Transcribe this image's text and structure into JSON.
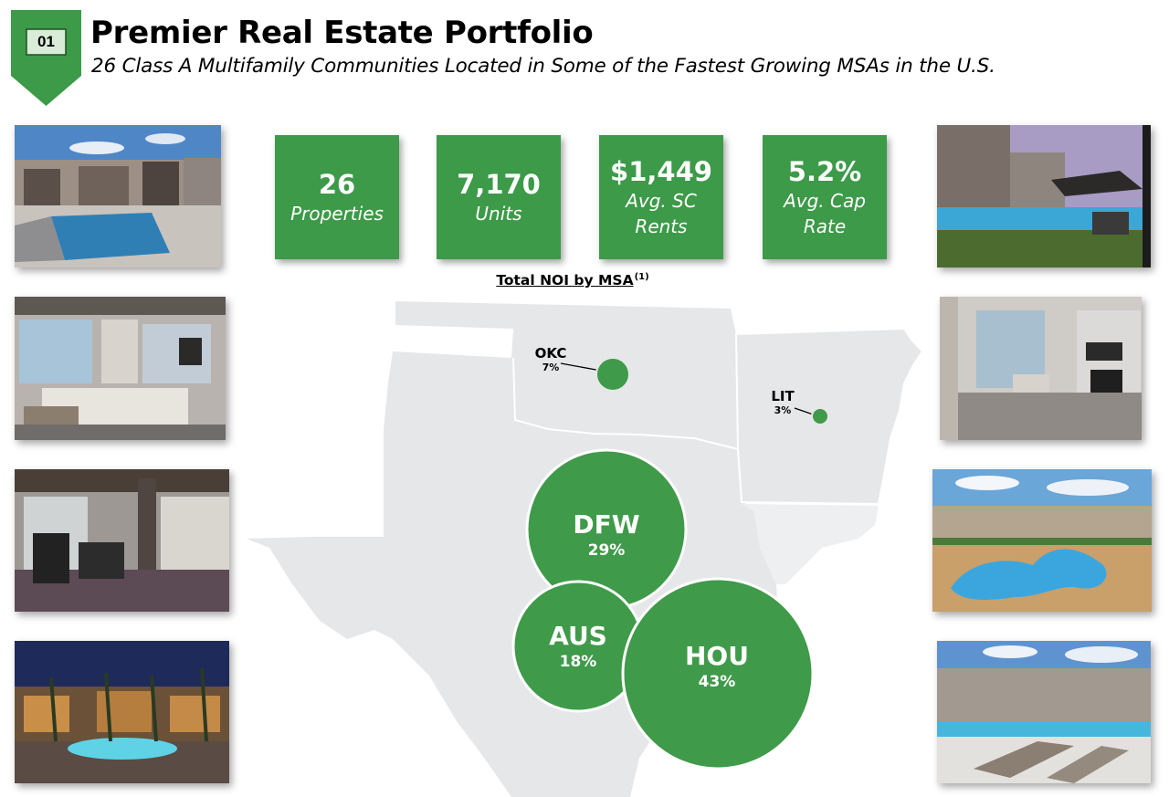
{
  "header": {
    "section_number": "01",
    "title": "Premier Real Estate Portfolio",
    "subtitle": "26 Class A Multifamily Communities Located in Some of the Fastest Growing MSAs in the U.S."
  },
  "colors": {
    "brand_green": "#3c9a48",
    "bubble_green": "#3f9a49",
    "map_gray": "#e6e7e9"
  },
  "stats": [
    {
      "value": "26",
      "label_lines": [
        "Properties"
      ]
    },
    {
      "value": "7,170",
      "label_lines": [
        "Units"
      ]
    },
    {
      "value": "$1,449",
      "label_lines": [
        "Avg. SC",
        "Rents"
      ]
    },
    {
      "value": "5.2%",
      "label_lines": [
        "Avg. Cap",
        "Rate"
      ]
    }
  ],
  "map": {
    "title": "Total NOI by MSA",
    "footnote": "(1)",
    "markets": [
      {
        "code": "OKC",
        "pct": "7%",
        "share": 7
      },
      {
        "code": "LIT",
        "pct": "3%",
        "share": 3
      },
      {
        "code": "DFW",
        "pct": "29%",
        "share": 29
      },
      {
        "code": "AUS",
        "pct": "18%",
        "share": 18
      },
      {
        "code": "HOU",
        "pct": "43%",
        "share": 43
      }
    ]
  },
  "photos": {
    "left": [
      "pool-exterior-photo",
      "clubhouse-lounge-photo",
      "fitness-center-photo",
      "night-pool-photo"
    ],
    "right": [
      "courtyard-cabana-photo",
      "interior-living-photo",
      "lagoon-pool-aerial-photo",
      "pool-deck-photo"
    ]
  }
}
